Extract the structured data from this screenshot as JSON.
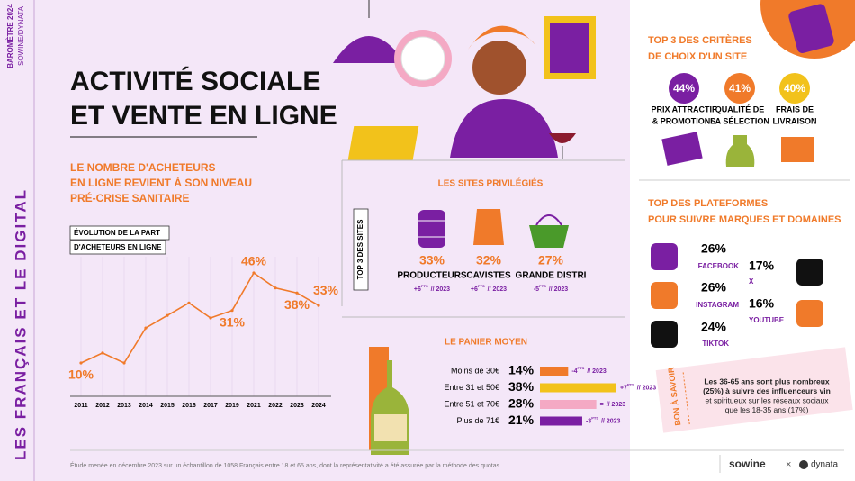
{
  "sidebar": {
    "brand": "BAROMÈTRE 2024",
    "source": "SOWINE/DYNATA",
    "theme": "LES FRANÇAIS ET LE DIGITAL"
  },
  "header": {
    "title_lines": [
      "ACTIVITÉ SOCIALE",
      "ET VENTE EN LIGNE"
    ]
  },
  "headline": [
    "LE NOMBRE D'ACHETEURS",
    "EN LIGNE REVIENT À SON NIVEAU",
    "PRÉ-CRISE SANITAIRE"
  ],
  "chart_data": {
    "type": "line",
    "title": [
      "ÉVOLUTION DE LA PART",
      "D'ACHETEURS EN LIGNE"
    ],
    "categories": [
      "2011",
      "2012",
      "2013",
      "2014",
      "2015",
      "2016",
      "2017",
      "2019",
      "2021",
      "2022",
      "2023",
      "2024"
    ],
    "series": [
      {
        "color": "#f07a2a",
        "values": [
          10,
          14,
          10,
          24,
          29,
          34,
          28,
          31,
          46,
          40,
          38,
          33
        ],
        "value_labels": [
          "10%",
          null,
          null,
          null,
          null,
          null,
          null,
          "31%",
          "46%",
          null,
          "38%",
          "33%"
        ]
      }
    ]
  },
  "sites": {
    "title": "LES SITES PRIVILÉGIÉS",
    "side_label": "TOP 3 DES SITES",
    "items": [
      {
        "share": "33%",
        "name": "PRODUCTEURS",
        "delta": "+6",
        "delta_unit": "PTS",
        "delta_year": "// 2023"
      },
      {
        "share": "32%",
        "name": "CAVISTES",
        "delta": "+6",
        "delta_unit": "PTS",
        "delta_year": "// 2023"
      },
      {
        "share": "27%",
        "name": "GRANDE DISTRI",
        "delta": "-5",
        "delta_unit": "PTS",
        "delta_year": "// 2023"
      }
    ]
  },
  "basket": {
    "title": "LE PANIER MOYEN",
    "rows": [
      {
        "label": "Moins de 30€",
        "value": 14,
        "value_label": "14%",
        "color": "#f07a2a",
        "delta": "-4",
        "delta_unit": "PTS",
        "delta_year": "// 2023"
      },
      {
        "label": "Entre 31 et 50€",
        "value": 38,
        "value_label": "38%",
        "color": "#f2c21b",
        "delta": "+7",
        "delta_unit": "PTS",
        "delta_year": "// 2023"
      },
      {
        "label": "Entre 51 et 70€",
        "value": 28,
        "value_label": "28%",
        "color": "#f4a9c4",
        "delta": "=",
        "delta_year": "// 2023"
      },
      {
        "label": "Plus de 71€",
        "value": 21,
        "value_label": "21%",
        "color": "#7a1fa2",
        "delta": "-3",
        "delta_unit": "PTS",
        "delta_year": "// 2023"
      }
    ]
  },
  "criteria": {
    "title": [
      "TOP 3 DES CRITÈRES",
      "DE CHOIX D'UN SITE"
    ],
    "items": [
      {
        "share": "44%",
        "name": [
          "PRIX ATTRACTIF",
          "& PROMOTIONS"
        ],
        "color": "#7a1fa2"
      },
      {
        "share": "41%",
        "name": [
          "QUALITÉ DE",
          "LA SÉLECTION"
        ],
        "color": "#f07a2a"
      },
      {
        "share": "40%",
        "name": [
          "FRAIS DE",
          "LIVRAISON"
        ],
        "color": "#f2c21b"
      }
    ]
  },
  "platforms": {
    "title": [
      "TOP DES PLATEFORMES",
      "POUR SUIVRE MARQUES ET DOMAINES"
    ],
    "items": [
      {
        "share": "26%",
        "name": "FACEBOOK"
      },
      {
        "share": "26%",
        "name": "INSTAGRAM"
      },
      {
        "share": "24%",
        "name": "TIKTOK"
      },
      {
        "share": "17%",
        "name": "X"
      },
      {
        "share": "16%",
        "name": "YOUTUBE"
      }
    ]
  },
  "note": {
    "label": "BON À SAVOIR",
    "lines": [
      "Les 36-65 ans sont plus nombreux",
      "(25%) à suivre des influenceurs vin",
      "et spiritueux sur les réseaux sociaux",
      "que les 18-35 ans (17%)"
    ]
  },
  "footer": {
    "study": "Étude menée en décembre 2023 sur un échantillon de 1058 Français entre 18 et 65 ans, dont la représentativité a été assurée par la méthode des quotas.",
    "brand": "sowine",
    "separator": "×",
    "partner": "dynata"
  }
}
